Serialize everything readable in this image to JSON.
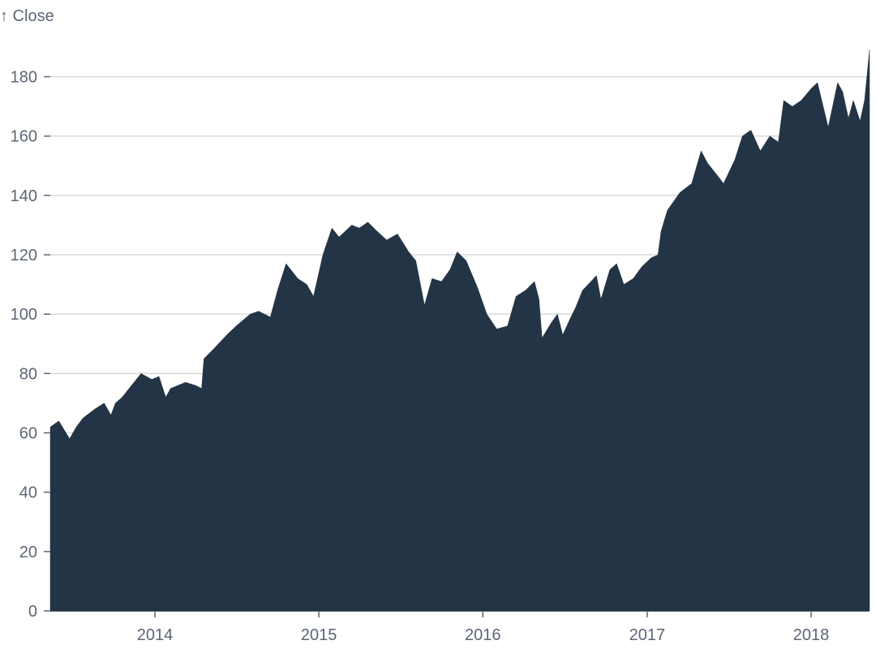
{
  "chart_data": {
    "type": "area",
    "ylabel": "↑ Close",
    "xlabel": "",
    "fill_color": "#233446",
    "grid": "horizontal",
    "xlim": [
      "2013-05-13",
      "2018-05-11"
    ],
    "ylim": [
      0,
      190
    ],
    "x_ticks": [
      "2014",
      "2015",
      "2016",
      "2017",
      "2018"
    ],
    "y_ticks": [
      0,
      20,
      40,
      60,
      80,
      100,
      120,
      140,
      160,
      180
    ],
    "series": [
      {
        "x": [
          "2013-05-13",
          "2013-06-01",
          "2013-06-25",
          "2013-07-10",
          "2013-07-25",
          "2013-08-20",
          "2013-09-10",
          "2013-09-25",
          "2013-10-05",
          "2013-10-20",
          "2013-11-10",
          "2013-12-01",
          "2013-12-25",
          "2014-01-10",
          "2014-01-25",
          "2014-02-05",
          "2014-03-10",
          "2014-04-01",
          "2014-04-15",
          "2014-04-20",
          "2014-05-10",
          "2014-06-10",
          "2014-07-01",
          "2014-08-01",
          "2014-08-20",
          "2014-09-15",
          "2014-10-01",
          "2014-10-20",
          "2014-11-15",
          "2014-12-05",
          "2014-12-20",
          "2015-01-10",
          "2015-01-30",
          "2015-02-15",
          "2015-03-01",
          "2015-03-15",
          "2015-04-01",
          "2015-04-20",
          "2015-05-10",
          "2015-06-01",
          "2015-06-25",
          "2015-07-20",
          "2015-08-05",
          "2015-08-24",
          "2015-09-10",
          "2015-10-01",
          "2015-10-20",
          "2015-11-05",
          "2015-11-25",
          "2015-12-20",
          "2016-01-10",
          "2016-02-01",
          "2016-02-25",
          "2016-03-15",
          "2016-04-05",
          "2016-04-25",
          "2016-05-05",
          "2016-05-12",
          "2016-06-01",
          "2016-06-15",
          "2016-06-27",
          "2016-07-15",
          "2016-07-25",
          "2016-08-10",
          "2016-09-10",
          "2016-09-20",
          "2016-10-10",
          "2016-10-25",
          "2016-11-10",
          "2016-12-01",
          "2016-12-20",
          "2017-01-10",
          "2017-01-25",
          "2017-02-01",
          "2017-02-15",
          "2017-03-15",
          "2017-04-10",
          "2017-05-01",
          "2017-05-15",
          "2017-06-10",
          "2017-06-20",
          "2017-07-15",
          "2017-08-01",
          "2017-08-20",
          "2017-09-10",
          "2017-10-01",
          "2017-10-20",
          "2017-11-01",
          "2017-11-20",
          "2017-12-10",
          "2018-01-01",
          "2018-01-15",
          "2018-02-08",
          "2018-03-01",
          "2018-03-12",
          "2018-03-25",
          "2018-04-05",
          "2018-04-20",
          "2018-04-30",
          "2018-05-11"
        ],
        "y": [
          62,
          64,
          58,
          62,
          65,
          68,
          70,
          66,
          70,
          72,
          76,
          80,
          78,
          79,
          72,
          75,
          77,
          76,
          75,
          85,
          88,
          93,
          96,
          100,
          101,
          99,
          108,
          117,
          112,
          110,
          106,
          120,
          129,
          126,
          128,
          130,
          129,
          131,
          128,
          125,
          127,
          121,
          118,
          103,
          112,
          111,
          115,
          121,
          118,
          109,
          100,
          95,
          96,
          106,
          108,
          111,
          105,
          92,
          97,
          100,
          93,
          99,
          102,
          108,
          113,
          105,
          115,
          117,
          110,
          112,
          116,
          119,
          120,
          128,
          135,
          141,
          144,
          155,
          151,
          146,
          144,
          152,
          160,
          162,
          155,
          160,
          158,
          172,
          170,
          172,
          176,
          178,
          163,
          178,
          175,
          166,
          172,
          165,
          172,
          189
        ]
      }
    ]
  }
}
